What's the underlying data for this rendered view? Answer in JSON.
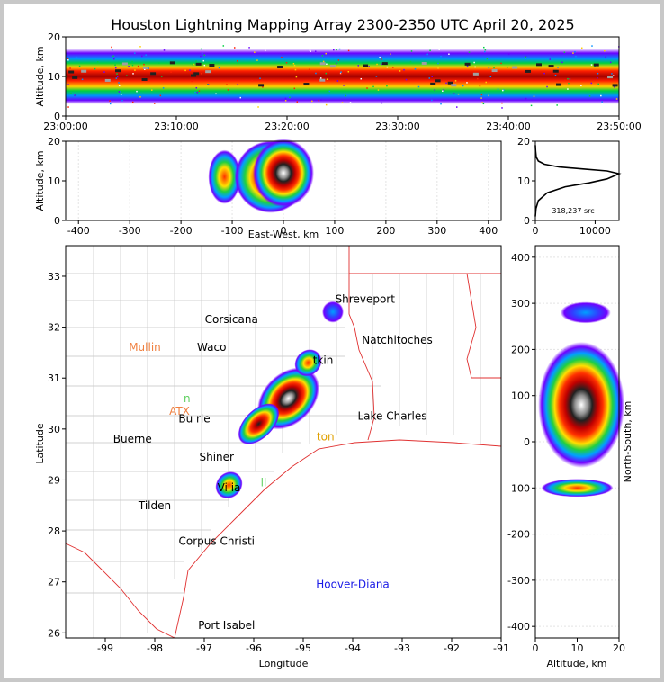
{
  "chart_data": [
    {
      "type": "heatmap",
      "panel": "altitude-vs-time",
      "title": "Houston Lightning Mapping Array 2300-2350 UTC April 20, 2025",
      "ylabel": "Altitude, km",
      "xlabel": "",
      "xticks": [
        "23:00:00",
        "23:10:00",
        "23:20:00",
        "23:30:00",
        "23:40:00",
        "23:50:00"
      ],
      "xlim": [
        "23:00:00",
        "23:50:00"
      ],
      "yticks": [
        0,
        10,
        20
      ],
      "ylim": [
        0,
        20
      ],
      "band_altitude_km": [
        3,
        17
      ],
      "core_altitude_km": [
        8,
        14
      ]
    },
    {
      "type": "heatmap",
      "panel": "altitude-vs-east-west",
      "xlabel": "East-West, km",
      "ylabel": "Altitude, km",
      "xticks": [
        -400,
        -300,
        -200,
        -100,
        0,
        100,
        200,
        300,
        400
      ],
      "xlim": [
        -425,
        425
      ],
      "yticks": [
        0,
        10,
        20
      ],
      "ylim": [
        0,
        20
      ],
      "clusters": [
        {
          "x_center_km": -115,
          "alt_center_km": 11,
          "intensity": "medium"
        },
        {
          "x_center_km": -25,
          "alt_center_km": 11,
          "intensity": "high"
        },
        {
          "x_center_km": 0,
          "alt_center_km": 12,
          "intensity": "peak"
        }
      ]
    },
    {
      "type": "line",
      "panel": "altitude-histogram",
      "xticks": [
        0,
        10000
      ],
      "xlim": [
        0,
        14000
      ],
      "yticks": [
        0,
        10,
        20
      ],
      "ylim": [
        0,
        20
      ],
      "annotation": "318,237 src",
      "x": [
        0,
        100,
        500,
        2000,
        5000,
        9000,
        12000,
        14000,
        12000,
        8000,
        4000,
        1500,
        500,
        150,
        50,
        0
      ],
      "y": [
        1,
        3,
        5,
        7,
        8.5,
        9.5,
        10.5,
        11.8,
        12.5,
        13,
        13.5,
        14.2,
        15,
        16,
        17.5,
        19
      ]
    },
    {
      "type": "heatmap",
      "panel": "map",
      "xlabel": "Longitude",
      "ylabel": "Latitude",
      "xticks": [
        -99,
        -98,
        -97,
        -96,
        -95,
        -94,
        -93,
        -92,
        -91
      ],
      "xlim": [
        -99.8,
        -91
      ],
      "yticks": [
        26,
        27,
        28,
        29,
        30,
        31,
        32,
        33
      ],
      "ylim": [
        25.9,
        33.6
      ],
      "cities": [
        {
          "name": "Shreveport",
          "lon": -93.75,
          "lat": 32.55
        },
        {
          "name": "Corsicana",
          "lon": -96.45,
          "lat": 32.15
        },
        {
          "name": "Natchitoches",
          "lon": -93.1,
          "lat": 31.75
        },
        {
          "name": "Waco",
          "lon": -96.85,
          "lat": 31.6
        },
        {
          "name": "tkin",
          "lon": -94.6,
          "lat": 31.35
        },
        {
          "name": "Lake Charles",
          "lon": -93.2,
          "lat": 30.25
        },
        {
          "name": "Bu rle",
          "lon": -97.2,
          "lat": 30.2
        },
        {
          "name": "Buerne",
          "lon": -98.45,
          "lat": 29.8
        },
        {
          "name": "Shiner",
          "lon": -96.75,
          "lat": 29.45
        },
        {
          "name": "Vi  ia",
          "lon": -96.5,
          "lat": 28.85
        },
        {
          "name": "Tilden",
          "lon": -98.0,
          "lat": 28.5
        },
        {
          "name": "Corpus Christi",
          "lon": -96.75,
          "lat": 27.8
        },
        {
          "name": "Port Isabel",
          "lon": -96.55,
          "lat": 26.15
        }
      ],
      "colored_labels": [
        {
          "name": "Mullin",
          "lon": -98.2,
          "lat": 31.6,
          "color": "#f08040"
        },
        {
          "name": "ATX",
          "lon": -97.5,
          "lat": 30.35,
          "color": "#f08040"
        },
        {
          "name": "n",
          "lon": -97.35,
          "lat": 30.6,
          "color": "#60d060"
        },
        {
          "name": "ton",
          "lon": -94.55,
          "lat": 29.85,
          "color": "#e0a000"
        },
        {
          "name": "ll",
          "lon": -95.8,
          "lat": 28.95,
          "color": "#60d060"
        },
        {
          "name": "Hoover-Diana",
          "lon": -94.0,
          "lat": 26.95,
          "color": "#1a1ae6"
        }
      ],
      "storm_cells": [
        {
          "lon": -95.3,
          "lat": 30.6,
          "intensity": "peak"
        },
        {
          "lon": -95.9,
          "lat": 30.1,
          "intensity": "high"
        },
        {
          "lon": -94.9,
          "lat": 31.3,
          "intensity": "medium"
        },
        {
          "lon": -94.4,
          "lat": 32.3,
          "intensity": "low"
        },
        {
          "lon": -96.5,
          "lat": 28.9,
          "intensity": "medium"
        }
      ]
    },
    {
      "type": "heatmap",
      "panel": "north-south-vs-altitude",
      "xlabel": "Altitude, km",
      "ylabel": "North-South, km",
      "xticks": [
        0,
        10,
        20
      ],
      "xlim": [
        0,
        20
      ],
      "yticks": [
        -400,
        -300,
        -200,
        -100,
        0,
        100,
        200,
        300,
        400
      ],
      "ylim": [
        -425,
        425
      ],
      "clusters": [
        {
          "ns_center_km": 80,
          "alt_center_km": 11,
          "intensity": "peak"
        },
        {
          "ns_center_km": 280,
          "alt_center_km": 12,
          "intensity": "low"
        },
        {
          "ns_center_km": -100,
          "alt_center_km": 10,
          "intensity": "medium"
        }
      ]
    }
  ]
}
